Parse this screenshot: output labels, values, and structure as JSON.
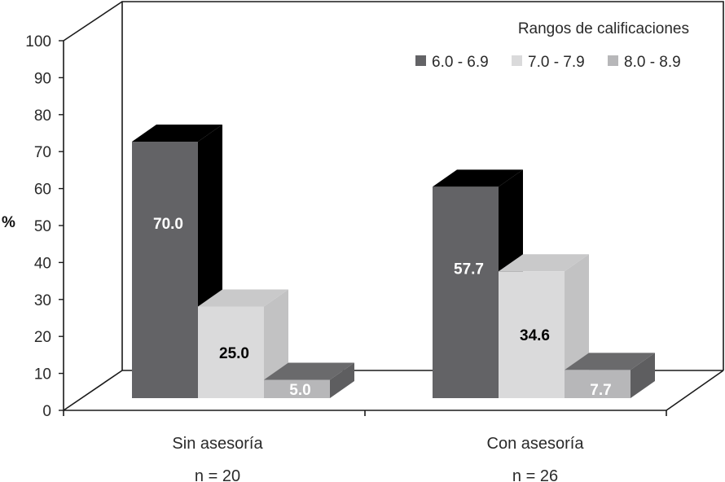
{
  "chart_data": {
    "type": "bar",
    "ylabel": "%",
    "ylim": [
      0,
      100
    ],
    "yticks": [
      0,
      10,
      20,
      30,
      40,
      50,
      60,
      70,
      80,
      90,
      100
    ],
    "categories": [
      "Sin asesoría",
      "Con asesoría"
    ],
    "category_notes": [
      "n = 20",
      "n = 26"
    ],
    "legend_title": "Rangos de calificaciones",
    "legend_position": "top-right",
    "grid": false,
    "style": "3d",
    "series": [
      {
        "name": "6.0 - 6.9",
        "values": [
          70.0,
          57.7
        ],
        "labels": [
          "70.0",
          "57.7"
        ],
        "color": "#636366",
        "side_color": "#000000",
        "top_color": "#000000",
        "label_color": "#ffffff"
      },
      {
        "name": "7.0 - 7.9",
        "values": [
          25.0,
          34.6
        ],
        "labels": [
          "25.0",
          "34.6"
        ],
        "color": "#dadadb",
        "side_color": "#c2c2c3",
        "top_color": "#c9c9ca",
        "label_color": "#000000"
      },
      {
        "name": "8.0 - 8.9",
        "values": [
          5.0,
          7.7
        ],
        "labels": [
          "5.0",
          "7.7"
        ],
        "color": "#b7b7b9",
        "side_color": "#5e5e60",
        "top_color": "#6a6a6c",
        "label_color": "#ffffff"
      }
    ]
  }
}
